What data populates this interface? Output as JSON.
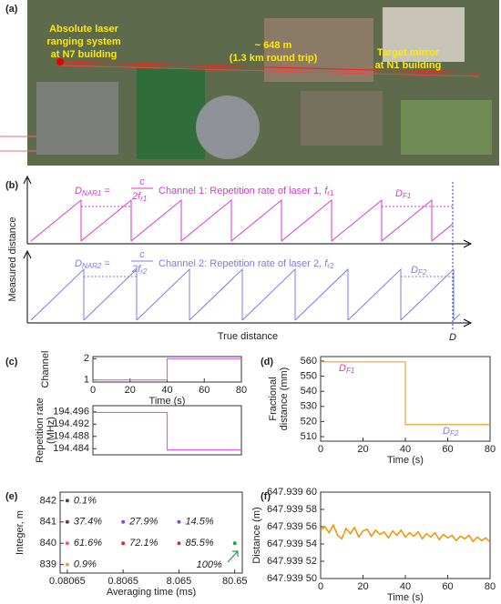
{
  "photo": {
    "label": "(a)",
    "source_lines": [
      "Absolute laser",
      "ranging system",
      "at N7 building"
    ],
    "distance_lines": [
      "~ 648 m",
      "(1.3 km round trip)"
    ],
    "target_lines": [
      "Target mirror",
      "at N1 building"
    ]
  },
  "diagram": {
    "label": "(b)",
    "eq1": {
      "lhs": "D",
      "lhs_sub": "NAR1",
      "eq": "=",
      "num": "c",
      "den": "2f",
      "den_sub": "r1"
    },
    "channel1": {
      "text": "Channel  1:  Repetition rate of laser 1, ",
      "var": "f",
      "sub": "r1"
    },
    "df1": {
      "text": "D",
      "sub": "F1"
    },
    "eq2": {
      "lhs": "D",
      "lhs_sub": "NAR2",
      "eq": "=",
      "num": "c",
      "den": "2f",
      "den_sub": "r2"
    },
    "channel2": {
      "text": "Channel  2:  Repetition rate of laser 2, ",
      "var": "f",
      "sub": "r2"
    },
    "df2": {
      "text": "D",
      "sub": "F2"
    },
    "ylabel": "Measured distance",
    "xlabel": "True distance",
    "true_distance": "D"
  },
  "chart_data": [
    {
      "type": "line",
      "panel": "(c)",
      "ylabel": [
        "Channel"
      ],
      "xlabel": "Time (s)",
      "x": [
        0,
        40,
        40,
        80
      ],
      "values": [
        1,
        1,
        2,
        2
      ],
      "color": "#e05ce0",
      "xlim": [
        0,
        80
      ],
      "xticks": [
        0,
        20,
        40,
        60,
        80
      ],
      "ylim": [
        0.9,
        2.1
      ],
      "yticks": [
        1,
        2
      ]
    },
    {
      "type": "line",
      "ylabel": [
        "Repetition rate",
        "(MHz)"
      ],
      "x": [
        0,
        40,
        40,
        80
      ],
      "values": [
        194.4958,
        194.4958,
        194.4836,
        194.4836
      ],
      "color": "#e05ce0",
      "xlim": [
        0,
        80
      ],
      "ylim": [
        194.482,
        194.498
      ],
      "yticks": [
        194.484,
        194.488,
        194.492,
        194.496
      ]
    },
    {
      "type": "line",
      "panel": "(d)",
      "ylabel": [
        "Fractional",
        "distance (mm)"
      ],
      "xlabel": "Time (s)",
      "x": [
        0,
        40,
        40,
        80
      ],
      "values": [
        559.5,
        559.5,
        518,
        518
      ],
      "color": "#f0a030",
      "xlim": [
        0,
        80
      ],
      "xticks": [
        0,
        20,
        40,
        60,
        80
      ],
      "ylim": [
        507,
        563
      ],
      "yticks": [
        510,
        520,
        530,
        540,
        550,
        560
      ],
      "annotations": [
        {
          "text": "D",
          "sub": "F1"
        },
        {
          "text": "D",
          "sub": "F2"
        }
      ]
    },
    {
      "type": "scatter",
      "panel": "(e)",
      "ylabel": [
        "Integer, m"
      ],
      "xlabel": "Averaging time (ms)",
      "log_x": true,
      "x": [
        0.08065,
        0.08065,
        0.08065,
        0.08065,
        0.8065,
        0.8065,
        8.065,
        8.065,
        80.65
      ],
      "values": [
        842,
        841,
        840,
        839,
        841,
        840,
        841,
        840,
        840
      ],
      "point_labels": [
        "0.1%",
        "37.4%",
        "61.6%",
        "0.9%",
        "27.9%",
        "72.1%",
        "14.5%",
        "85.5%",
        "100%"
      ],
      "colors": [
        "#6b3a2a",
        "#6b3a2a",
        "#e05c8a",
        "#f0a030",
        "#8a4ad0",
        "#d03030",
        "#8a4ad0",
        "#d03030",
        "#20a040"
      ],
      "xlim": [
        0.06,
        110
      ],
      "xticks": [
        0.08065,
        0.8065,
        8.065,
        80.65
      ],
      "ylim": [
        838.6,
        842.4
      ],
      "yticks": [
        839,
        840,
        841,
        842
      ]
    },
    {
      "type": "line",
      "panel": "(f)",
      "ylabel": [
        "Distance (m)"
      ],
      "xlabel": "Time (s)",
      "x": [
        0,
        2,
        4,
        6,
        8,
        10,
        12,
        14,
        16,
        18,
        20,
        22,
        24,
        26,
        28,
        30,
        32,
        34,
        36,
        38,
        40,
        42,
        44,
        46,
        48,
        50,
        52,
        54,
        56,
        58,
        60,
        62,
        64,
        66,
        68,
        70,
        72,
        74,
        76,
        78,
        80
      ],
      "values": [
        647.939556,
        647.93956,
        647.939553,
        647.939562,
        647.93955,
        647.939546,
        647.939558,
        647.939552,
        647.939559,
        647.939548,
        647.939555,
        647.939557,
        647.939549,
        647.939556,
        647.939551,
        647.939554,
        647.939547,
        647.939555,
        647.93955,
        647.939556,
        647.939548,
        647.939553,
        647.939549,
        647.939554,
        647.939546,
        647.939552,
        647.939548,
        647.939553,
        647.939545,
        647.939551,
        647.939547,
        647.93955,
        647.939544,
        647.939549,
        647.939546,
        647.93955,
        647.939543,
        647.939548,
        647.939544,
        647.939547,
        647.939542
      ],
      "color": "#f39200",
      "xlim": [
        0,
        80
      ],
      "xticks": [
        0,
        20,
        40,
        60,
        80
      ],
      "ylim": [
        647.9395,
        647.9396
      ],
      "yticks": [
        {
          "value": 647.9395,
          "label": "647.939 50"
        },
        {
          "value": 647.93952,
          "label": "647.939 52"
        },
        {
          "value": 647.93954,
          "label": "647.939 54"
        },
        {
          "value": 647.93956,
          "label": "647.939 56"
        },
        {
          "value": 647.93958,
          "label": "647.939 58"
        },
        {
          "value": 647.9396,
          "label": "647.939 60"
        }
      ]
    }
  ]
}
